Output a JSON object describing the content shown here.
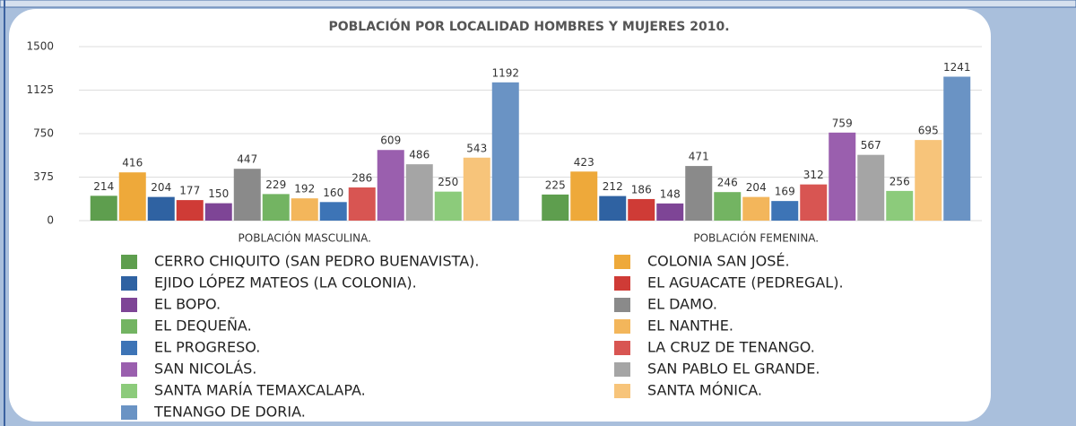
{
  "chart_data": {
    "type": "bar",
    "title": "POBLACIÓN POR LOCALIDAD HOMBRES Y MUJERES 2010.",
    "categories": [
      "POBLACIÓN MASCULINA.",
      "POBLACIÓN FEMENINA."
    ],
    "series": [
      {
        "name": "CERRO CHIQUITO (SAN PEDRO BUENAVISTA).",
        "color": "#5e9e4e",
        "values": [
          214,
          225
        ]
      },
      {
        "name": "COLONIA SAN JOSÉ.",
        "color": "#eea93a",
        "values": [
          416,
          423
        ]
      },
      {
        "name": "EJIDO LÓPEZ MATEOS (LA COLONIA).",
        "color": "#2f62a2",
        "values": [
          204,
          212
        ]
      },
      {
        "name": "EL AGUACATE (PEDREGAL).",
        "color": "#cf3b36",
        "values": [
          177,
          186
        ]
      },
      {
        "name": "EL BOPO.",
        "color": "#7e4596",
        "values": [
          150,
          148
        ]
      },
      {
        "name": "EL DAMO.",
        "color": "#8a8a8a",
        "values": [
          447,
          471
        ]
      },
      {
        "name": "EL DEQUEÑA.",
        "color": "#73b462",
        "values": [
          229,
          246
        ]
      },
      {
        "name": "EL NANTHE.",
        "color": "#f3b65b",
        "values": [
          192,
          204
        ]
      },
      {
        "name": "EL PROGRESO.",
        "color": "#3d74b6",
        "values": [
          160,
          169
        ]
      },
      {
        "name": "LA CRUZ DE TENANGO.",
        "color": "#d85552",
        "values": [
          286,
          312
        ]
      },
      {
        "name": "SAN NICOLÁS.",
        "color": "#9a5fae",
        "values": [
          609,
          759
        ]
      },
      {
        "name": "SAN PABLO EL GRANDE.",
        "color": "#a5a5a5",
        "values": [
          486,
          567
        ]
      },
      {
        "name": "SANTA MARÍA TEMAXCALAPA.",
        "color": "#8ccb7b",
        "values": [
          250,
          256
        ]
      },
      {
        "name": "SANTA MÓNICA.",
        "color": "#f7c47a",
        "values": [
          543,
          695
        ]
      },
      {
        "name": "TENANGO DE DORIA.",
        "color": "#6a93c4",
        "values": [
          1192,
          1241
        ]
      }
    ],
    "ylim": [
      0,
      1500
    ],
    "yticks": [
      0,
      375,
      750,
      1125,
      1500
    ],
    "grid": true
  }
}
